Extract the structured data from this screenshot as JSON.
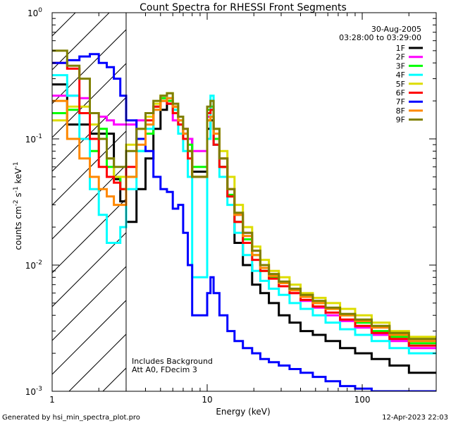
{
  "chart_data": {
    "type": "line",
    "title": "Count Spectra for RHESSI Front Segments",
    "xlabel": "Energy (keV)",
    "ylabel_parts": {
      "prefix": "counts cm",
      "exp1": "-2",
      "mid1": " s",
      "exp2": "-1",
      "mid2": " keV",
      "exp3": "-1"
    },
    "x_scale": "log",
    "y_scale": "log",
    "xlim": [
      1,
      300
    ],
    "ylim": [
      0.001,
      1
    ],
    "x_ticks": [
      {
        "value": 1,
        "label": "1"
      },
      {
        "value": 10,
        "label": "10"
      },
      {
        "value": 100,
        "label": "100"
      }
    ],
    "y_ticks": [
      {
        "value": 1,
        "base": "10",
        "exp": "0"
      },
      {
        "value": 0.1,
        "base": "10",
        "exp": "-1"
      },
      {
        "value": 0.01,
        "base": "10",
        "exp": "-2"
      },
      {
        "value": 0.001,
        "base": "10",
        "exp": "-3"
      }
    ],
    "date": "30-Aug-2005",
    "time_range": "03:28:00 to 03:29:00",
    "annotation_lines": [
      "Includes Background",
      "Att A0, FDecim 3"
    ],
    "hatched_region_max_energy": 3,
    "series": [
      {
        "name": "1F",
        "color": "#000000",
        "values": [
          0.27,
          0.13,
          0.13,
          0.11,
          0.11,
          0.11,
          0.048,
          0.032,
          0.022,
          0.04,
          0.07,
          0.12,
          0.17,
          0.19,
          0.18,
          0.13,
          0.11,
          0.1,
          0.055,
          0.12,
          0.14,
          0.09,
          0.06,
          0.035,
          0.015,
          0.01,
          0.007,
          0.006,
          0.005,
          0.004,
          0.0035,
          0.003,
          0.0028,
          0.0025,
          0.0022,
          0.002,
          0.0018,
          0.0016,
          0.0014
        ]
      },
      {
        "name": "2F",
        "color": "#ff00ff",
        "values": [
          0.22,
          0.22,
          0.21,
          0.16,
          0.15,
          0.14,
          0.13,
          0.13,
          0.13,
          0.14,
          0.16,
          0.18,
          0.21,
          0.19,
          0.14,
          0.13,
          0.12,
          0.1,
          0.08,
          0.15,
          0.15,
          0.1,
          0.07,
          0.04,
          0.025,
          0.018,
          0.013,
          0.01,
          0.008,
          0.0068,
          0.006,
          0.0052,
          0.0046,
          0.004,
          0.0036,
          0.0032,
          0.0028,
          0.0025,
          0.0022
        ]
      },
      {
        "name": "3F",
        "color": "#00ff00",
        "values": [
          0.16,
          0.17,
          0.16,
          0.08,
          0.12,
          0.06,
          0.05,
          0.04,
          0.05,
          0.08,
          0.11,
          0.18,
          0.21,
          0.2,
          0.17,
          0.14,
          0.1,
          0.09,
          0.06,
          0.17,
          0.18,
          0.1,
          0.06,
          0.036,
          0.022,
          0.016,
          0.012,
          0.009,
          0.008,
          0.0072,
          0.0065,
          0.0058,
          0.005,
          0.0045,
          0.004,
          0.0035,
          0.003,
          0.0027,
          0.0024
        ]
      },
      {
        "name": "4F",
        "color": "#00ffff",
        "values": [
          0.32,
          0.22,
          0.1,
          0.04,
          0.025,
          0.015,
          0.015,
          0.02,
          0.04,
          0.08,
          0.12,
          0.17,
          0.2,
          0.21,
          0.17,
          0.11,
          0.08,
          0.05,
          0.008,
          0.1,
          0.22,
          0.09,
          0.05,
          0.03,
          0.018,
          0.012,
          0.009,
          0.0075,
          0.0065,
          0.0058,
          0.005,
          0.0045,
          0.004,
          0.0035,
          0.0031,
          0.0028,
          0.0025,
          0.0022,
          0.002
        ]
      },
      {
        "name": "5F",
        "color": "#dddd00",
        "values": [
          0.14,
          0.18,
          0.18,
          0.13,
          0.1,
          0.07,
          0.05,
          0.05,
          0.09,
          0.12,
          0.15,
          0.19,
          0.22,
          0.23,
          0.18,
          0.15,
          0.1,
          0.08,
          0.05,
          0.14,
          0.15,
          0.12,
          0.08,
          0.05,
          0.03,
          0.02,
          0.014,
          0.011,
          0.009,
          0.008,
          0.007,
          0.006,
          0.0055,
          0.005,
          0.0045,
          0.004,
          0.0035,
          0.003,
          0.0027
        ]
      },
      {
        "name": "6F",
        "color": "#ff0000",
        "values": [
          0.4,
          0.36,
          0.16,
          0.1,
          0.06,
          0.05,
          0.045,
          0.04,
          0.06,
          0.1,
          0.14,
          0.18,
          0.2,
          0.19,
          0.16,
          0.13,
          0.1,
          0.07,
          0.05,
          0.16,
          0.17,
          0.09,
          0.06,
          0.035,
          0.022,
          0.015,
          0.011,
          0.009,
          0.0078,
          0.0068,
          0.006,
          0.0053,
          0.0047,
          0.0042,
          0.0037,
          0.0033,
          0.0029,
          0.0026,
          0.0023
        ]
      },
      {
        "name": "7F",
        "color": "#0000ff",
        "values": [
          0.4,
          0.42,
          0.45,
          0.47,
          0.4,
          0.37,
          0.3,
          0.22,
          0.14,
          0.1,
          0.08,
          0.05,
          0.04,
          0.038,
          0.028,
          0.03,
          0.018,
          0.01,
          0.004,
          0.006,
          0.008,
          0.006,
          0.004,
          0.003,
          0.0025,
          0.0022,
          0.002,
          0.0018,
          0.0017,
          0.0016,
          0.0015,
          0.0014,
          0.0013,
          0.0012,
          0.0011,
          0.00105,
          0.001,
          0.001,
          0.001
        ]
      },
      {
        "name": "8F",
        "color": "#ff8800",
        "values": [
          0.2,
          0.1,
          0.07,
          0.05,
          0.04,
          0.035,
          0.03,
          0.03,
          0.05,
          0.09,
          0.13,
          0.17,
          0.2,
          0.21,
          0.18,
          0.14,
          0.11,
          0.08,
          0.05,
          0.14,
          0.15,
          0.11,
          0.07,
          0.04,
          0.025,
          0.017,
          0.012,
          0.0095,
          0.0082,
          0.0072,
          0.0063,
          0.0056,
          0.005,
          0.0045,
          0.004,
          0.0036,
          0.0032,
          0.0028,
          0.0025
        ]
      },
      {
        "name": "9F",
        "color": "#7f7f00",
        "values": [
          0.5,
          0.38,
          0.3,
          0.16,
          0.1,
          0.07,
          0.06,
          0.06,
          0.08,
          0.12,
          0.16,
          0.2,
          0.22,
          0.23,
          0.19,
          0.15,
          0.12,
          0.08,
          0.05,
          0.18,
          0.2,
          0.12,
          0.07,
          0.04,
          0.026,
          0.018,
          0.013,
          0.01,
          0.0085,
          0.0074,
          0.0065,
          0.0058,
          0.0052,
          0.0046,
          0.0041,
          0.0037,
          0.0033,
          0.0029,
          0.0026
        ]
      }
    ],
    "x_bins": [
      1.0,
      1.25,
      1.5,
      1.75,
      2.0,
      2.25,
      2.5,
      2.75,
      3.0,
      3.5,
      4.0,
      4.5,
      5.0,
      5.5,
      6.0,
      6.5,
      7.0,
      7.5,
      8.0,
      10.0,
      10.5,
      11.0,
      12.0,
      13.5,
      15.0,
      17.0,
      19.5,
      22.0,
      25.0,
      29.0,
      34.0,
      40.0,
      48.0,
      58.0,
      72.0,
      90.0,
      115.0,
      150.0,
      200.0,
      300.0
    ]
  },
  "footer": {
    "generator": "Generated by hsi_min_spectra_plot.pro",
    "timestamp": "12-Apr-2023 22:03"
  }
}
